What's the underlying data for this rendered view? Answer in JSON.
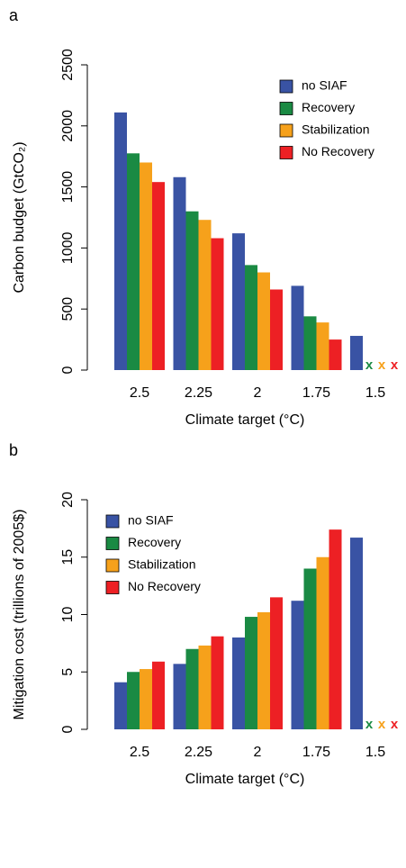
{
  "chart_data": [
    {
      "type": "bar",
      "panel_label": "a",
      "y_label": "Carbon budget (GtCO₂)",
      "x_label": "Climate target (°C)",
      "categories": [
        "2.5",
        "2.25",
        "2",
        "1.75",
        "1.5"
      ],
      "series": [
        {
          "name": "no SIAF",
          "color": "#3953a4",
          "values": [
            2110,
            1580,
            1120,
            690,
            280
          ]
        },
        {
          "name": "Recovery",
          "color": "#1a8a43",
          "values": [
            1775,
            1300,
            860,
            440,
            null
          ]
        },
        {
          "name": "Stabilization",
          "color": "#f6a11b",
          "values": [
            1700,
            1230,
            800,
            390,
            null
          ]
        },
        {
          "name": "No Recovery",
          "color": "#ed2024",
          "values": [
            1540,
            1080,
            660,
            250,
            null
          ]
        }
      ],
      "missing_label": "x",
      "ylim": [
        0,
        2500
      ],
      "yticks": [
        0,
        500,
        1000,
        1500,
        2000,
        2500
      ],
      "legend": "top right"
    },
    {
      "type": "bar",
      "panel_label": "b",
      "y_label": "Mitigation cost (trillions of 2005$)",
      "x_label": "Climate target (°C)",
      "categories": [
        "2.5",
        "2.25",
        "2",
        "1.75",
        "1.5"
      ],
      "series": [
        {
          "name": "no SIAF",
          "color": "#3953a4",
          "values": [
            4.1,
            5.7,
            8.0,
            11.2,
            16.7
          ]
        },
        {
          "name": "Recovery",
          "color": "#1a8a43",
          "values": [
            5.0,
            7.0,
            9.8,
            14.0,
            null
          ]
        },
        {
          "name": "Stabilization",
          "color": "#f6a11b",
          "values": [
            5.25,
            7.3,
            10.2,
            15.0,
            null
          ]
        },
        {
          "name": "No Recovery",
          "color": "#ed2024",
          "values": [
            5.9,
            8.1,
            11.5,
            17.4,
            null
          ]
        }
      ],
      "missing_label": "x",
      "ylim": [
        0,
        20
      ],
      "yticks": [
        0,
        5,
        10,
        15,
        20
      ],
      "legend": "top left"
    }
  ]
}
